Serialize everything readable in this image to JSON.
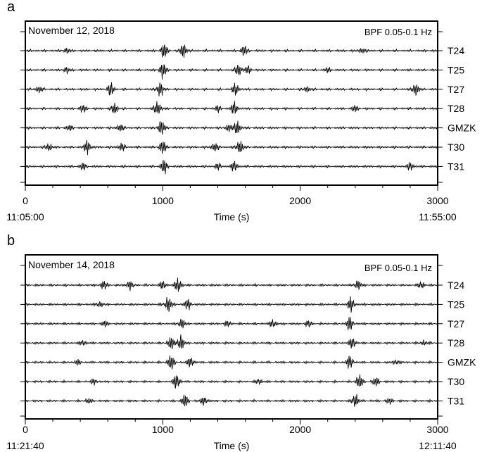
{
  "figure": {
    "panels": [
      {
        "letter": "a",
        "date": "November 12, 2018",
        "filter": "BPF 0.05-0.1 Hz",
        "xlabel": "Time (s)",
        "start_time": "11:05:00",
        "end_time": "11:55:00"
      },
      {
        "letter": "b",
        "date": "November 14, 2018",
        "filter": "BPF 0.05-0.1 Hz",
        "xlabel": "Time (s)",
        "start_time": "11:21:40",
        "end_time": "12:11:40"
      }
    ]
  },
  "chart_data": [
    {
      "type": "line",
      "title": "November 12, 2018",
      "annotation": "BPF 0.05-0.1 Hz",
      "xlabel": "Time (s)",
      "ylabel": "",
      "xlim": [
        0,
        3000
      ],
      "xticks": [
        0,
        1000,
        2000,
        3000
      ],
      "xtick_labels": [
        "0",
        "1000",
        "2000",
        "3000"
      ],
      "time_labels": [
        "11:05:00",
        "11:55:00"
      ],
      "stations": [
        "T24",
        "T25",
        "T27",
        "T28",
        "GMZK",
        "T30",
        "T31"
      ],
      "grid": false,
      "legend": "none",
      "series": [
        {
          "name": "T24",
          "bursts": [
            [
              1010,
              1.0
            ],
            [
              1150,
              0.9
            ],
            [
              1590,
              0.7
            ],
            [
              300,
              0.3
            ],
            [
              2450,
              0.3
            ]
          ]
        },
        {
          "name": "T25",
          "bursts": [
            [
              1000,
              1.0
            ],
            [
              1550,
              0.8
            ],
            [
              1620,
              0.5
            ],
            [
              300,
              0.35
            ],
            [
              2200,
              0.3
            ]
          ]
        },
        {
          "name": "T27",
          "bursts": [
            [
              980,
              1.0
            ],
            [
              620,
              0.9
            ],
            [
              1530,
              0.8
            ],
            [
              2840,
              0.8
            ],
            [
              100,
              0.4
            ],
            [
              2050,
              0.35
            ]
          ]
        },
        {
          "name": "T28",
          "bursts": [
            [
              960,
              1.0
            ],
            [
              650,
              0.8
            ],
            [
              1520,
              0.9
            ],
            [
              420,
              0.5
            ],
            [
              2400,
              0.4
            ],
            [
              1400,
              0.4
            ]
          ]
        },
        {
          "name": "GMZK",
          "bursts": [
            [
              990,
              1.0
            ],
            [
              1540,
              0.9
            ],
            [
              690,
              0.5
            ],
            [
              320,
              0.3
            ],
            [
              1480,
              0.5
            ]
          ]
        },
        {
          "name": "T30",
          "bursts": [
            [
              1000,
              1.0
            ],
            [
              1560,
              1.0
            ],
            [
              450,
              0.9
            ],
            [
              170,
              0.5
            ],
            [
              1380,
              0.6
            ],
            [
              700,
              0.5
            ]
          ]
        },
        {
          "name": "T31",
          "bursts": [
            [
              1010,
              1.0
            ],
            [
              1520,
              0.7
            ],
            [
              420,
              0.5
            ],
            [
              2800,
              0.5
            ],
            [
              1400,
              0.4
            ]
          ]
        }
      ]
    },
    {
      "type": "line",
      "title": "November 14, 2018",
      "annotation": "BPF 0.05-0.1 Hz",
      "xlabel": "Time (s)",
      "ylabel": "",
      "xlim": [
        0,
        3000
      ],
      "xticks": [
        0,
        1000,
        2000,
        3000
      ],
      "xtick_labels": [
        "0",
        "1000",
        "2000",
        "3000"
      ],
      "time_labels": [
        "11:21:40",
        "12:11:40"
      ],
      "stations": [
        "T24",
        "T25",
        "T27",
        "T28",
        "GMZK",
        "T30",
        "T31"
      ],
      "grid": false,
      "legend": "none",
      "series": [
        {
          "name": "T24",
          "bursts": [
            [
              1110,
              1.0
            ],
            [
              570,
              0.6
            ],
            [
              760,
              0.6
            ],
            [
              2420,
              0.6
            ],
            [
              1000,
              0.5
            ],
            [
              2880,
              0.4
            ]
          ]
        },
        {
          "name": "T25",
          "bursts": [
            [
              1040,
              1.0
            ],
            [
              2370,
              1.0
            ],
            [
              1180,
              0.7
            ],
            [
              540,
              0.35
            ]
          ]
        },
        {
          "name": "T27",
          "bursts": [
            [
              2360,
              1.0
            ],
            [
              1140,
              0.6
            ],
            [
              1800,
              0.5
            ],
            [
              2060,
              0.4
            ],
            [
              580,
              0.35
            ],
            [
              1470,
              0.35
            ]
          ]
        },
        {
          "name": "T28",
          "bursts": [
            [
              1130,
              1.0
            ],
            [
              1060,
              0.8
            ],
            [
              2380,
              0.7
            ],
            [
              420,
              0.3
            ],
            [
              2900,
              0.3
            ]
          ]
        },
        {
          "name": "GMZK",
          "bursts": [
            [
              1060,
              1.0
            ],
            [
              2360,
              0.9
            ],
            [
              1200,
              0.7
            ],
            [
              380,
              0.3
            ],
            [
              2700,
              0.3
            ]
          ]
        },
        {
          "name": "T30",
          "bursts": [
            [
              1100,
              1.0
            ],
            [
              2430,
              1.0
            ],
            [
              2550,
              0.6
            ],
            [
              500,
              0.35
            ],
            [
              1700,
              0.35
            ]
          ]
        },
        {
          "name": "T31",
          "bursts": [
            [
              1160,
              0.9
            ],
            [
              2400,
              0.9
            ],
            [
              1300,
              0.6
            ],
            [
              460,
              0.3
            ],
            [
              2650,
              0.35
            ]
          ]
        }
      ]
    }
  ]
}
